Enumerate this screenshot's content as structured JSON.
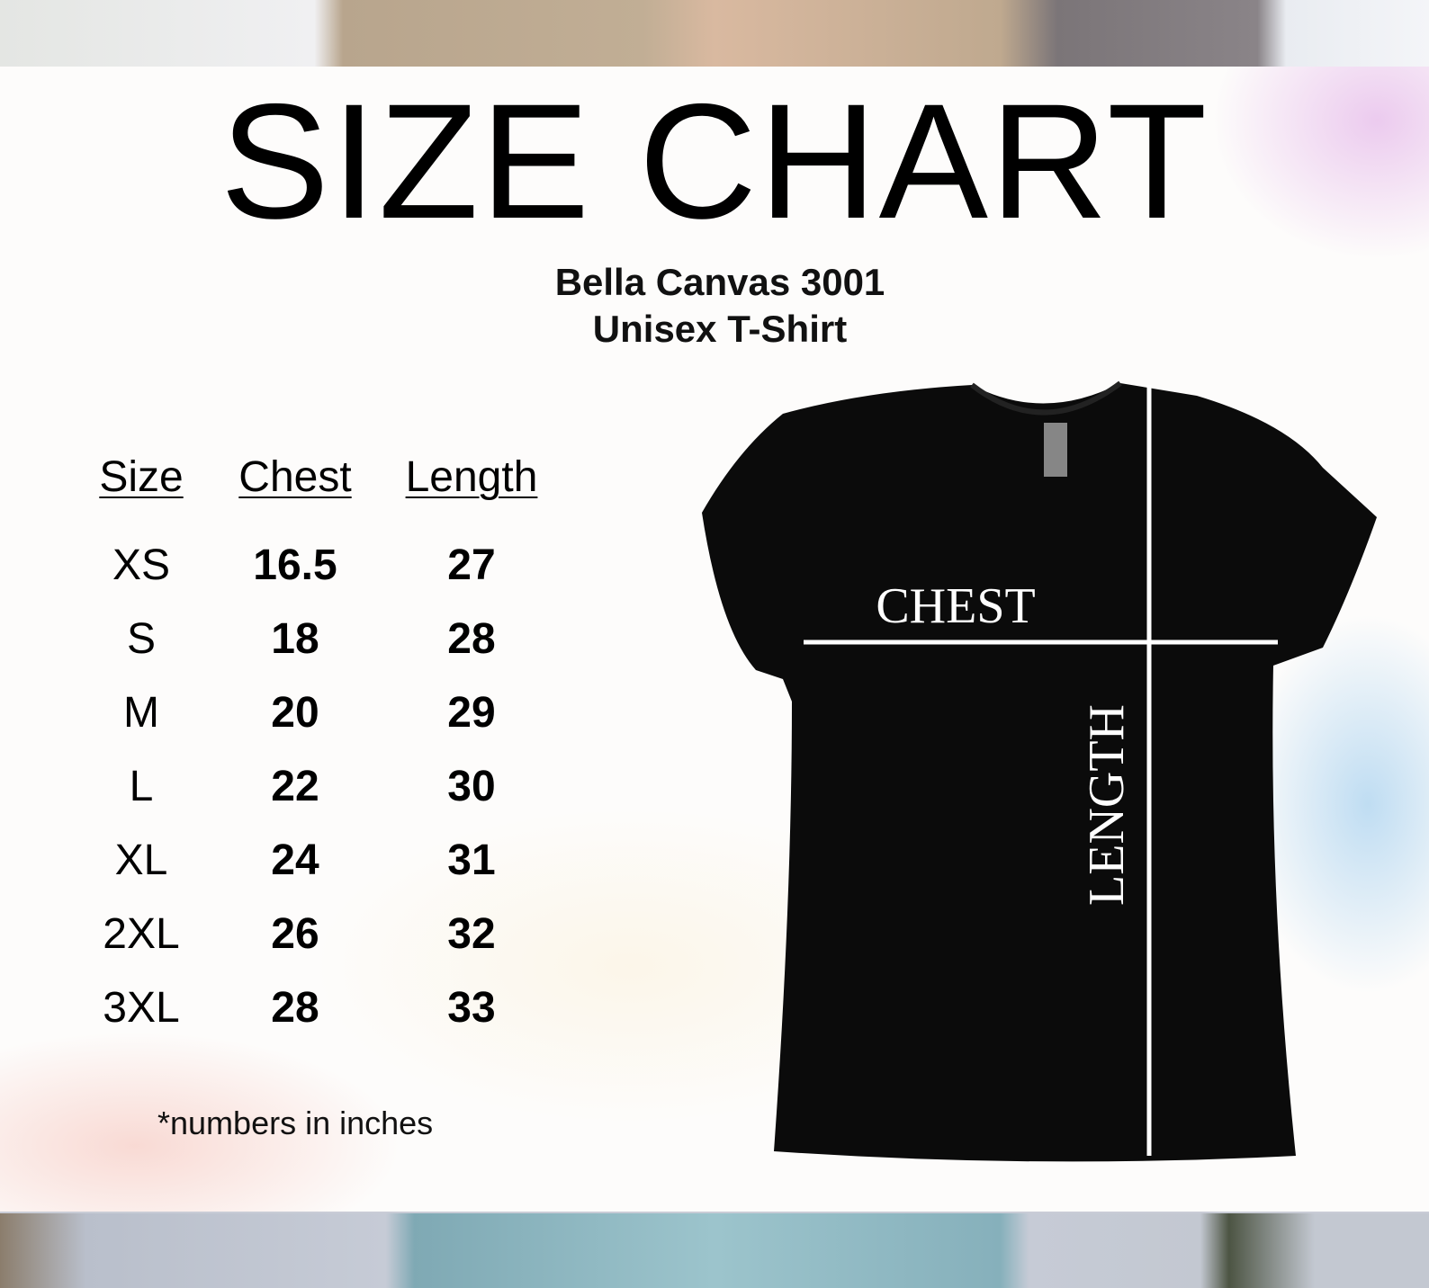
{
  "title": "SIZE CHART",
  "subtitle_line1": "Bella Canvas 3001",
  "subtitle_line2": "Unisex T-Shirt",
  "table": {
    "headers": [
      "Size",
      "Chest",
      "Length"
    ],
    "rows": [
      [
        "XS",
        "16.5",
        "27"
      ],
      [
        "S",
        "18",
        "28"
      ],
      [
        "M",
        "20",
        "29"
      ],
      [
        "L",
        "22",
        "30"
      ],
      [
        "XL",
        "24",
        "31"
      ],
      [
        "2XL",
        "26",
        "32"
      ],
      [
        "3XL",
        "28",
        "33"
      ]
    ]
  },
  "note": "*numbers in inches",
  "shirt": {
    "chest_label": "CHEST",
    "length_label": "LENGTH",
    "color": "#0b0b0b"
  }
}
